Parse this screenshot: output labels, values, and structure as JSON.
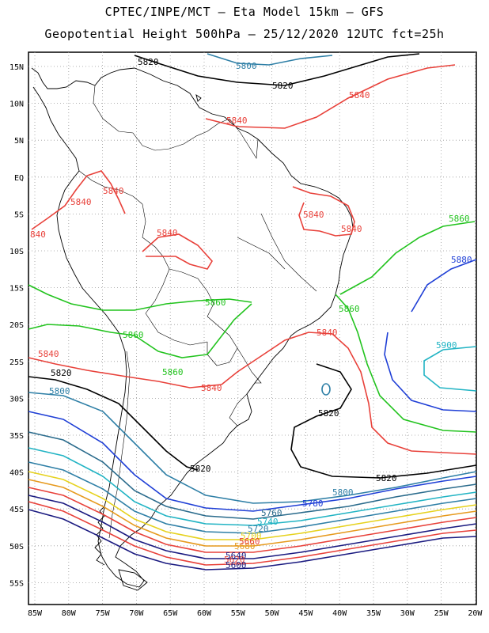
{
  "title_line1": "CPTEC/INPE/MCT –  Eta Model 15km – GFS",
  "title_line2": "Geopotential Height 500hPa – 25/12/2020 12UTC fct=25h",
  "lat_labels": [
    "15N",
    "10N",
    "5N",
    "EQ",
    "5S",
    "10S",
    "15S",
    "20S",
    "25S",
    "30S",
    "35S",
    "40S",
    "45S",
    "50S",
    "55S"
  ],
  "lon_labels": [
    "85W",
    "80W",
    "75W",
    "70W",
    "65W",
    "60W",
    "55W",
    "50W",
    "45W",
    "40W",
    "35W",
    "30W",
    "25W",
    "20W"
  ],
  "contour_labels": [
    {
      "id": "l5820a",
      "text": "5820",
      "color": "#000000"
    },
    {
      "id": "l5800a",
      "text": "5800",
      "color": "#2e7fa6"
    },
    {
      "id": "l5820b",
      "text": "5820",
      "color": "#000000"
    },
    {
      "id": "l5840a",
      "text": "5840",
      "color": "#e8413a"
    },
    {
      "id": "l5840b",
      "text": "5840",
      "color": "#e8413a"
    },
    {
      "id": "l5840c",
      "text": "5840",
      "color": "#e8413a"
    },
    {
      "id": "l5840d",
      "text": "5840",
      "color": "#e8413a"
    },
    {
      "id": "l5840e",
      "text": "5840",
      "color": "#e8413a"
    },
    {
      "id": "l5840f",
      "text": "5840",
      "color": "#e8413a"
    },
    {
      "id": "l5840g",
      "text": "5840",
      "color": "#e8413a"
    },
    {
      "id": "l5840h",
      "text": "840",
      "color": "#e8413a"
    },
    {
      "id": "l5860a",
      "text": "5860",
      "color": "#22c31e"
    },
    {
      "id": "l5880a",
      "text": "5880",
      "color": "#1f3fd6"
    },
    {
      "id": "l5860b",
      "text": "5860",
      "color": "#22c31e"
    },
    {
      "id": "l5860c",
      "text": "5860",
      "color": "#22c31e"
    },
    {
      "id": "l5860d",
      "text": "5860",
      "color": "#22c31e"
    },
    {
      "id": "l5860e",
      "text": "5860",
      "color": "#22c31e"
    },
    {
      "id": "l5900a",
      "text": "5900",
      "color": "#22b4c4"
    },
    {
      "id": "l5840i",
      "text": "5840",
      "color": "#e8413a"
    },
    {
      "id": "l5840j",
      "text": "5840",
      "color": "#e8413a"
    },
    {
      "id": "l5840k",
      "text": "5840",
      "color": "#e8413a"
    },
    {
      "id": "l5820c",
      "text": "5820",
      "color": "#000000"
    },
    {
      "id": "l5800b",
      "text": "5800",
      "color": "#2e7fa6"
    },
    {
      "id": "l5820d",
      "text": "5820",
      "color": "#000000"
    },
    {
      "id": "l5820e",
      "text": "5820",
      "color": "#000000"
    },
    {
      "id": "l5820f",
      "text": "5820",
      "color": "#000000"
    },
    {
      "id": "l5800c",
      "text": "5800",
      "color": "#2e7fa6"
    },
    {
      "id": "l5780",
      "text": "5780",
      "color": "#1f3fd6"
    },
    {
      "id": "l5760",
      "text": "5760",
      "color": "#2a6b8c"
    },
    {
      "id": "l5740",
      "text": "5740",
      "color": "#22b4c4"
    },
    {
      "id": "l5720",
      "text": "5720",
      "color": "#2e7fa6"
    },
    {
      "id": "l5700",
      "text": "5700",
      "color": "#e6d21e"
    },
    {
      "id": "l5680",
      "text": "5680",
      "color": "#e69a1e"
    },
    {
      "id": "l5660",
      "text": "5660",
      "color": "#e8413a"
    },
    {
      "id": "l5640",
      "text": "5640",
      "color": "#1a1a80"
    },
    {
      "id": "l5620",
      "text": "5620",
      "color": "#e8413a"
    },
    {
      "id": "l5600",
      "text": "5600",
      "color": "#1a1a80"
    }
  ],
  "colors": {
    "c5600": "#1a1a80",
    "c5620": "#e8413a",
    "c5640": "#1a1a80",
    "c5660": "#e8413a",
    "c5680": "#e69a1e",
    "c5700": "#e6d21e",
    "c5720": "#2e7fa6",
    "c5740": "#22b4c4",
    "c5760": "#2a6b8c",
    "c5780": "#1f3fd6",
    "c5800": "#2e7fa6",
    "c5820": "#000000",
    "c5840": "#e8413a",
    "c5860": "#22c31e",
    "c5880": "#1f3fd6",
    "c5900": "#22b4c4",
    "coast": "#000000",
    "grid": "#9a9a9a"
  }
}
